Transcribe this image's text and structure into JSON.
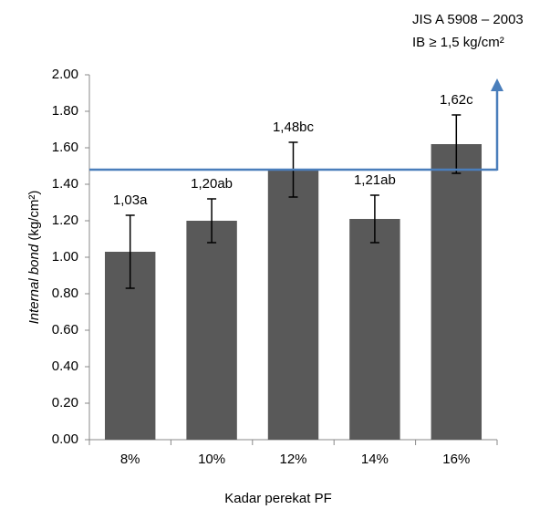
{
  "chart_data": {
    "type": "bar",
    "y_label_italic": "Internal bond",
    "y_label_unit": "(kg/cm²)",
    "x_label": "Kadar perekat PF",
    "annotations": [
      "JIS A 5908 – 2003",
      "IB ≥ 1,5  kg/cm²"
    ],
    "categories": [
      "8%",
      "10%",
      "12%",
      "14%",
      "16%"
    ],
    "values": [
      1.03,
      1.2,
      1.48,
      1.21,
      1.62
    ],
    "value_labels": [
      "1,03a",
      "1,20ab",
      "1,48bc",
      "1,21ab",
      "1,62c"
    ],
    "errors": [
      0.2,
      0.12,
      0.15,
      0.13,
      0.16
    ],
    "color": "#595959",
    "reference_line": {
      "value": 1.48,
      "color": "#4a7ebb"
    },
    "ylim": [
      0,
      2
    ],
    "yticks": [
      {
        "value": 0,
        "label": "0.00"
      },
      {
        "value": 0.2,
        "label": "0.20"
      },
      {
        "value": 0.4,
        "label": "0.40"
      },
      {
        "value": 0.6,
        "label": "0.60"
      },
      {
        "value": 0.8,
        "label": "0.80"
      },
      {
        "value": 1,
        "label": "1.00"
      },
      {
        "value": 1.2,
        "label": "1.20"
      },
      {
        "value": 1.4,
        "label": "1.40"
      },
      {
        "value": 1.6,
        "label": "1.60"
      },
      {
        "value": 1.8,
        "label": "1.80"
      },
      {
        "value": 2,
        "label": "2.00"
      }
    ]
  }
}
